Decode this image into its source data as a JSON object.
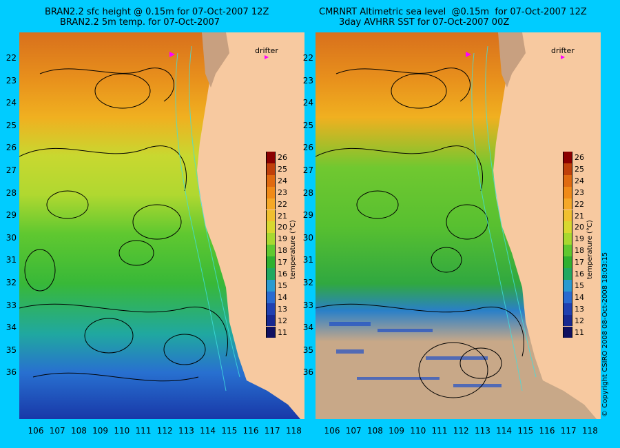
{
  "left_panel": {
    "title_line1": "BRAN2.2 sfc height @ 0.15m for 07-Oct-2007 12Z",
    "title_line2": "BRAN2.2 5m temp. for 07-Oct-2007",
    "drifter_label": "drifter",
    "colorbar_title": "temperature (°C)"
  },
  "right_panel": {
    "title_line1": "CMRNRT Altimetric sea level  @0.15m  for 07-Oct-2007 12Z",
    "title_line2": "3day AVHRR SST for 07-Oct-2007 00Z",
    "drifter_label": "drifter",
    "colorbar_title": "temperature (°C)"
  },
  "latitudes": [
    "22",
    "23",
    "24",
    "25",
    "26",
    "27",
    "28",
    "29",
    "30",
    "31",
    "32",
    "33",
    "34",
    "35",
    "36"
  ],
  "longitudes": [
    "106",
    "107",
    "108",
    "109",
    "110",
    "111",
    "112",
    "113",
    "114",
    "115",
    "116",
    "117",
    "118"
  ],
  "colorbar_ticks": [
    "26",
    "25",
    "24",
    "23",
    "22",
    "21",
    "20",
    "19",
    "18",
    "17",
    "16",
    "15",
    "14",
    "13",
    "12",
    "11"
  ],
  "colorbar_colors": [
    "#8b0000",
    "#c0400a",
    "#e06a10",
    "#f08a18",
    "#f5a828",
    "#f0c030",
    "#d8d830",
    "#a8d830",
    "#60c830",
    "#30b030",
    "#20a860",
    "#2a9ad0",
    "#2a6ad0",
    "#2040b0",
    "#182890",
    "#101060"
  ],
  "copyright": "© Copyright CSIRO 2008     08-Oct-2008 18:03:15"
}
